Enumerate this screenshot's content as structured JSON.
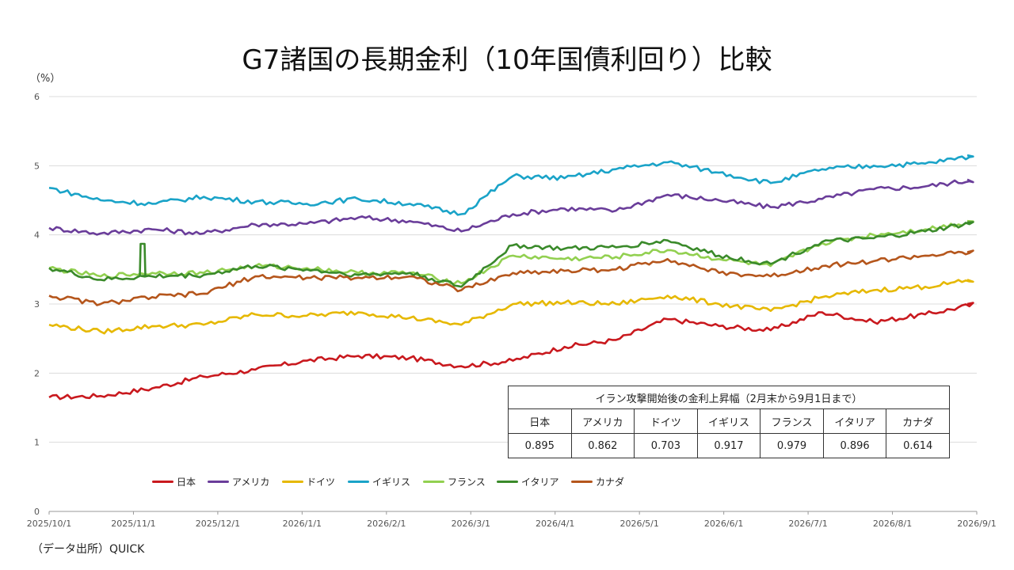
{
  "title": "G7諸国の長期金利（10年国債利回り）比較",
  "unit": "（%）",
  "source": "（データ出所）QUICK",
  "chart_data": {
    "type": "line",
    "title": "G7諸国の長期金利（10年国債利回り）比較",
    "ylabel": "（%）",
    "ylim": [
      0,
      6
    ],
    "yticks": [
      "0",
      "1",
      "2",
      "3",
      "4",
      "5",
      "6"
    ],
    "grid": true,
    "legend_position": "bottom-left",
    "x_labels": [
      "2025/10/1",
      "2025/11/1",
      "2025/12/1",
      "2026/1/1",
      "2026/2/1",
      "2026/3/1",
      "2026/4/1",
      "2026/5/1",
      "2026/6/1",
      "2026/7/1",
      "2026/8/1",
      "2026/9/1"
    ],
    "series": [
      {
        "name": "日本",
        "color": "#c9191e",
        "values": [
          1.65,
          1.67,
          1.78,
          1.95,
          2.05,
          2.18,
          2.25,
          2.22,
          2.1,
          2.18,
          2.38,
          2.48,
          2.78,
          2.68,
          2.62,
          2.88,
          2.74,
          2.85,
          3.0
        ]
      },
      {
        "name": "アメリカ",
        "color": "#6a3d9a",
        "values": [
          4.1,
          4.02,
          4.08,
          4.02,
          4.15,
          4.16,
          4.25,
          4.2,
          4.05,
          4.3,
          4.38,
          4.35,
          4.58,
          4.5,
          4.4,
          4.52,
          4.66,
          4.7,
          4.8
        ]
      },
      {
        "name": "ドイツ",
        "color": "#e6b800",
        "values": [
          2.7,
          2.6,
          2.68,
          2.7,
          2.85,
          2.83,
          2.88,
          2.8,
          2.7,
          3.0,
          3.02,
          3.0,
          3.12,
          3.0,
          2.9,
          3.1,
          3.2,
          3.25,
          3.35
        ]
      },
      {
        "name": "イギリス",
        "color": "#1aa3c8",
        "values": [
          4.68,
          4.5,
          4.45,
          4.55,
          4.48,
          4.45,
          4.52,
          4.45,
          4.3,
          4.85,
          4.82,
          4.95,
          5.05,
          4.9,
          4.75,
          4.95,
          5.0,
          5.03,
          5.15
        ]
      },
      {
        "name": "フランス",
        "color": "#92d050",
        "values": [
          3.52,
          3.4,
          3.45,
          3.45,
          3.55,
          3.52,
          3.45,
          3.45,
          3.3,
          3.7,
          3.65,
          3.68,
          3.78,
          3.65,
          3.55,
          3.88,
          4.0,
          4.08,
          4.2
        ]
      },
      {
        "name": "イタリア",
        "color": "#3a8a2a",
        "values": [
          3.52,
          3.35,
          3.4,
          3.42,
          3.55,
          3.5,
          3.42,
          3.45,
          3.25,
          3.85,
          3.8,
          3.82,
          3.92,
          3.7,
          3.58,
          3.9,
          3.95,
          4.05,
          4.18
        ]
      },
      {
        "name": "カナダ",
        "color": "#b5561c",
        "values": [
          3.12,
          3.0,
          3.1,
          3.15,
          3.4,
          3.38,
          3.38,
          3.4,
          3.2,
          3.45,
          3.48,
          3.5,
          3.65,
          3.45,
          3.4,
          3.55,
          3.62,
          3.7,
          3.75
        ]
      }
    ],
    "spike": {
      "series": "イタリア",
      "label": "2025/11/1",
      "value": 3.87
    }
  },
  "summary_table": {
    "caption": "イラン攻撃開始後の金利上昇幅（2月末から9月1日まで）",
    "headers": [
      "日本",
      "アメリカ",
      "ドイツ",
      "イギリス",
      "フランス",
      "イタリア",
      "カナダ"
    ],
    "values": [
      "0.895",
      "0.862",
      "0.703",
      "0.917",
      "0.979",
      "0.896",
      "0.614"
    ]
  }
}
